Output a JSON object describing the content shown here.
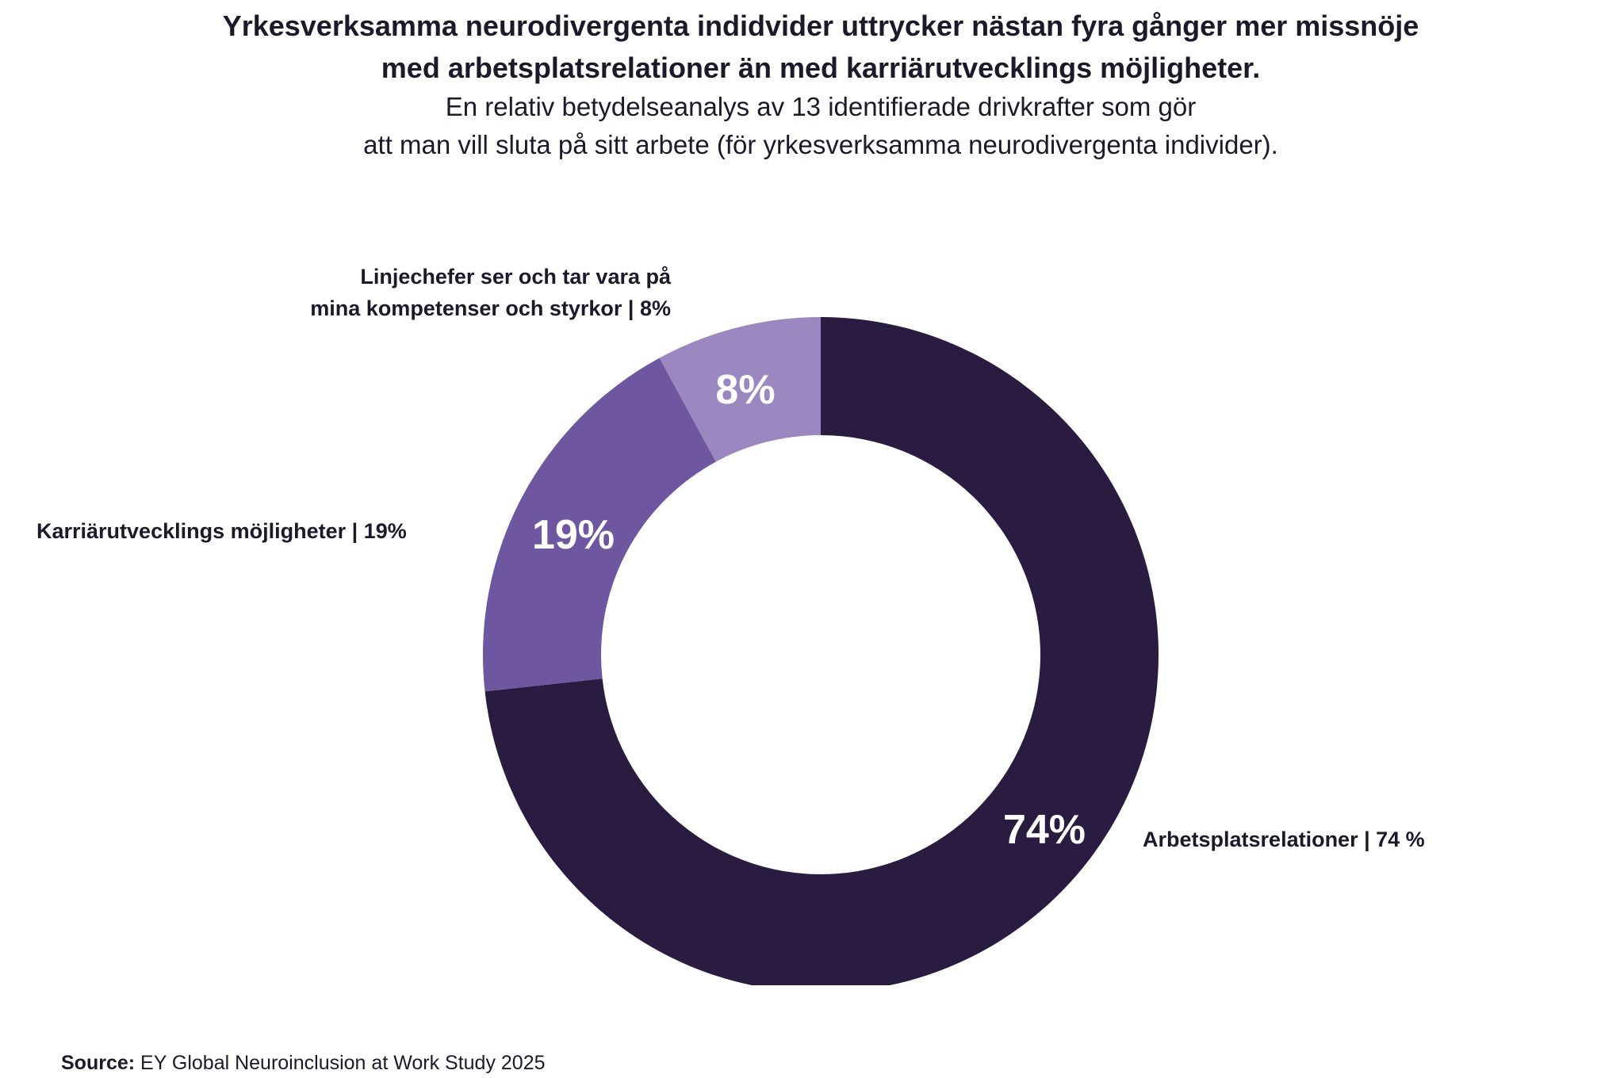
{
  "chart_data": {
    "type": "pie",
    "variant": "donut",
    "title_lines": [
      "Yrkesverksamma neurodivergenta indidvider uttrycker nästan fyra gånger mer missnöje",
      "med arbetsplatsrelationer än med karriärutvecklings möjligheter."
    ],
    "subtitle_lines": [
      "En relativ betydelseanalys av 13 identifierade drivkrafter som gör",
      "att man vill sluta på sitt arbete (för yrkesverksamma neurodivergenta individer)."
    ],
    "slices": [
      {
        "label_lines": [
          "Arbetsplatsrelationer | 74 %"
        ],
        "value": 74,
        "data_label": "74%",
        "color": "#2a1c40"
      },
      {
        "label_lines": [
          "Karriärutvecklings möjligheter | 19%"
        ],
        "value": 19,
        "data_label": "19%",
        "color": "#6e56a0"
      },
      {
        "label_lines": [
          "Linjechefer ser och tar vara på",
          "mina kompetenser och styrkor  | 8%"
        ],
        "value": 8,
        "data_label": "8%",
        "color": "#9b88c0"
      }
    ],
    "start": "top",
    "direction": "clockwise",
    "source_label": "Source:",
    "source_text": " EY Global Neuroinclusion at Work Study 2025"
  }
}
